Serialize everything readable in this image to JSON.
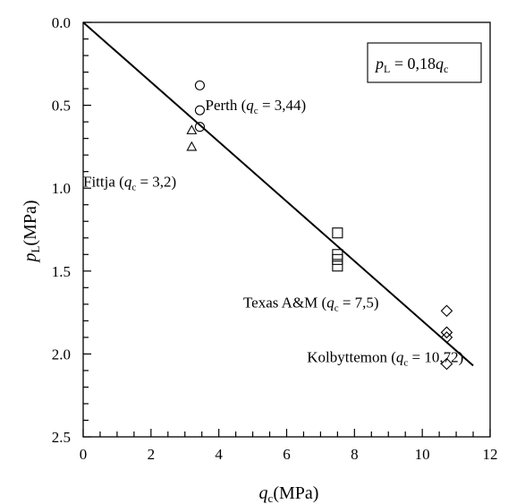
{
  "chart_data": {
    "type": "scatter",
    "title": "",
    "xlabel": {
      "symbol": "q",
      "sub": "c",
      "unit": "(MPa)"
    },
    "ylabel": {
      "symbol": "p",
      "sub": "L",
      "unit": "(MPa)"
    },
    "xlim": [
      0,
      12
    ],
    "ylim": [
      0,
      2.5
    ],
    "y_inverted": true,
    "grid": false,
    "xticks": [
      0,
      2,
      4,
      6,
      8,
      10,
      12
    ],
    "xtick_labels": [
      "0",
      "2",
      "4",
      "6",
      "8",
      "10",
      "12"
    ],
    "yticks": [
      0,
      0.5,
      1,
      1.5,
      2,
      2.5
    ],
    "ytick_labels": [
      "0.0",
      "0.5",
      "1.0",
      "1.5",
      "2.0",
      "2.5"
    ],
    "series": [
      {
        "marker": "circle",
        "points": [
          [
            3.44,
            0.38
          ],
          [
            3.44,
            0.53
          ],
          [
            3.44,
            0.63
          ]
        ]
      },
      {
        "marker": "triangle",
        "points": [
          [
            3.2,
            0.65
          ],
          [
            3.2,
            0.75
          ]
        ]
      },
      {
        "marker": "square",
        "points": [
          [
            7.5,
            1.27
          ],
          [
            7.5,
            1.4
          ],
          [
            7.5,
            1.43
          ],
          [
            7.5,
            1.47
          ]
        ]
      },
      {
        "marker": "diamond",
        "points": [
          [
            10.72,
            1.74
          ],
          [
            10.72,
            1.87
          ],
          [
            10.72,
            1.9
          ],
          [
            10.72,
            2.06
          ]
        ]
      }
    ],
    "fit_line": {
      "slope": 0.18,
      "x": [
        0,
        11.5
      ]
    },
    "equation": {
      "lhs": "p",
      "lhs_sub": "L",
      "mid": " = 0,18",
      "rhs": "q",
      "rhs_sub": "c"
    },
    "annotations": [
      {
        "site": "Perth",
        "value": "3,44",
        "x": 3.6,
        "y": 0.53
      },
      {
        "site": "Fittja",
        "value": "3,2",
        "x": 0.0,
        "y": 0.99
      },
      {
        "site": "Texas A&M",
        "value": "7,5",
        "x": 4.72,
        "y": 1.72
      },
      {
        "site": "Kolbyttemon",
        "value": "10,72",
        "x": 6.6,
        "y": 2.05
      }
    ]
  }
}
